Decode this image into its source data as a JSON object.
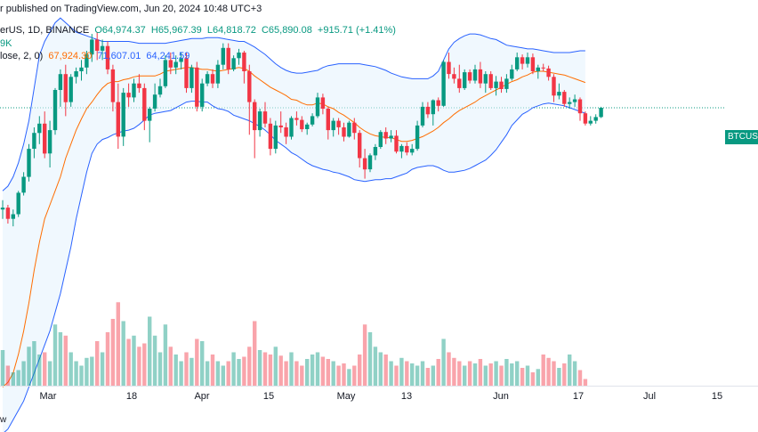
{
  "header": {
    "line1": "r published on TradingView.com, Jun 20, 2024 10:48 UTC+3",
    "symbol_prefix": "erUS, 1D, BINANCE",
    "open": "O64,974.37",
    "high": "H65,967.39",
    "low": "L64,818.72",
    "close": "C65,890.08",
    "change": "+915.71 (+1.41%)",
    "volume": "9K",
    "indicator_prefix": "lose, 2, 0)",
    "ind_basis": "67,924.30",
    "ind_upper": "71,607.01",
    "ind_lower": "64,241.59"
  },
  "price_tag": "BTCUSDT",
  "footer": "w",
  "colors": {
    "up": "#089981",
    "down": "#f23645",
    "band": "#2962ff",
    "basis": "#ff6d00",
    "band_fill": "#e3f2fd"
  },
  "chart_data": {
    "type": "candlestick",
    "x_ticks": [
      "Mar",
      "18",
      "Apr",
      "15",
      "May",
      "13",
      "Jun",
      "17",
      "Jul",
      "15"
    ],
    "y_range": [
      35000,
      76000
    ],
    "last_price": 65890.08,
    "candles": [
      [
        55000,
        56000,
        54000,
        55200
      ],
      [
        55200,
        55500,
        53500,
        54000
      ],
      [
        54000,
        55000,
        53200,
        54500
      ],
      [
        54500,
        57000,
        54200,
        56800
      ],
      [
        56800,
        59000,
        56500,
        58500
      ],
      [
        58500,
        62000,
        58000,
        61500
      ],
      [
        61500,
        63800,
        60500,
        63200
      ],
      [
        63200,
        65000,
        62000,
        64200
      ],
      [
        64200,
        65500,
        60500,
        61000
      ],
      [
        61000,
        64500,
        59500,
        63500
      ],
      [
        63500,
        68000,
        63000,
        67800
      ],
      [
        67800,
        70000,
        66000,
        69500
      ],
      [
        69500,
        70500,
        65000,
        66500
      ],
      [
        66500,
        69500,
        66000,
        69200
      ],
      [
        69200,
        70200,
        68500,
        69800
      ],
      [
        69800,
        71000,
        68800,
        70200
      ],
      [
        70200,
        72000,
        69500,
        71600
      ],
      [
        71600,
        73800,
        70800,
        73200
      ],
      [
        73200,
        74000,
        71000,
        72000
      ],
      [
        72000,
        73200,
        71000,
        72500
      ],
      [
        72500,
        73000,
        69500,
        70000
      ],
      [
        70000,
        70500,
        65500,
        66500
      ],
      [
        66500,
        68500,
        61500,
        62800
      ],
      [
        62800,
        68000,
        61800,
        67500
      ],
      [
        67500,
        68500,
        66000,
        67000
      ],
      [
        67000,
        69000,
        66500,
        68500
      ],
      [
        68500,
        69500,
        67500,
        68000
      ],
      [
        68000,
        68500,
        63500,
        64500
      ],
      [
        64500,
        66000,
        62200,
        65800
      ],
      [
        65800,
        68500,
        65500,
        67300
      ],
      [
        67300,
        69000,
        67000,
        68200
      ],
      [
        68200,
        71500,
        68000,
        71000
      ],
      [
        71000,
        71800,
        69500,
        70200
      ],
      [
        70200,
        71500,
        69500,
        70800
      ],
      [
        70800,
        71800,
        70000,
        71200
      ],
      [
        71200,
        71800,
        67500,
        68000
      ],
      [
        68000,
        70500,
        67500,
        70200
      ],
      [
        70200,
        70800,
        65500,
        66000
      ],
      [
        66000,
        69000,
        65500,
        68500
      ],
      [
        68500,
        69800,
        68200,
        69500
      ],
      [
        69500,
        70000,
        68000,
        68500
      ],
      [
        68500,
        71000,
        68000,
        70500
      ],
      [
        70500,
        72800,
        70000,
        72300
      ],
      [
        72300,
        72800,
        69500,
        70000
      ],
      [
        70000,
        71500,
        69800,
        71200
      ],
      [
        71200,
        72200,
        70500,
        71800
      ],
      [
        71800,
        72000,
        68500,
        69800
      ],
      [
        69800,
        70500,
        63000,
        66500
      ],
      [
        66500,
        66800,
        60500,
        63500
      ],
      [
        63500,
        65800,
        62800,
        65500
      ],
      [
        65500,
        66500,
        63800,
        64200
      ],
      [
        64200,
        64800,
        60800,
        61500
      ],
      [
        61500,
        64500,
        61000,
        64000
      ],
      [
        64000,
        65500,
        63200,
        63800
      ],
      [
        63800,
        64300,
        62000,
        62800
      ],
      [
        62800,
        65000,
        62500,
        64800
      ],
      [
        64800,
        65500,
        64000,
        64600
      ],
      [
        64600,
        65000,
        63300,
        63600
      ],
      [
        63600,
        64300,
        63000,
        64100
      ],
      [
        64100,
        65300,
        63900,
        65000
      ],
      [
        65000,
        67500,
        64800,
        67000
      ],
      [
        67000,
        67400,
        65200,
        65800
      ],
      [
        65800,
        66000,
        62500,
        63500
      ],
      [
        63500,
        64800,
        62800,
        64500
      ],
      [
        64500,
        64800,
        63000,
        63800
      ],
      [
        63800,
        64300,
        62300,
        62800
      ],
      [
        62800,
        64500,
        62700,
        64300
      ],
      [
        64300,
        64800,
        62500,
        63200
      ],
      [
        63200,
        63500,
        59500,
        60500
      ],
      [
        60500,
        61500,
        58300,
        59300
      ],
      [
        59300,
        61000,
        59000,
        60800
      ],
      [
        60800,
        62000,
        60300,
        61700
      ],
      [
        61700,
        63500,
        61500,
        63300
      ],
      [
        63300,
        63800,
        62000,
        62600
      ],
      [
        62600,
        63500,
        62200,
        62900
      ],
      [
        62900,
        63500,
        61000,
        61200
      ],
      [
        61200,
        62000,
        60500,
        61800
      ],
      [
        61800,
        62200,
        60800,
        61100
      ],
      [
        61100,
        62000,
        60800,
        61500
      ],
      [
        61500,
        64500,
        61300,
        64000
      ],
      [
        64000,
        66500,
        63800,
        66000
      ],
      [
        66000,
        66500,
        64800,
        65200
      ],
      [
        65200,
        66800,
        64000,
        66700
      ],
      [
        66700,
        67000,
        65500,
        66100
      ],
      [
        66100,
        71000,
        66000,
        70800
      ],
      [
        70800,
        71800,
        69000,
        69500
      ],
      [
        69500,
        70200,
        68500,
        69000
      ],
      [
        69000,
        70500,
        67500,
        68000
      ],
      [
        68000,
        70000,
        67800,
        69700
      ],
      [
        69700,
        70000,
        68500,
        68800
      ],
      [
        68800,
        70500,
        68500,
        70000
      ],
      [
        70000,
        70800,
        68000,
        68500
      ],
      [
        68500,
        69800,
        67500,
        69500
      ],
      [
        69500,
        69800,
        67800,
        68000
      ],
      [
        68000,
        69300,
        67200,
        68700
      ],
      [
        68700,
        69200,
        67500,
        67900
      ],
      [
        67900,
        69500,
        67500,
        69000
      ],
      [
        69000,
        70500,
        68800,
        70000
      ],
      [
        70000,
        71800,
        69800,
        71300
      ],
      [
        71300,
        71600,
        70000,
        70600
      ],
      [
        70600,
        71800,
        70200,
        71300
      ],
      [
        71300,
        71700,
        69500,
        69800
      ],
      [
        69800,
        70500,
        69000,
        70200
      ],
      [
        70200,
        70600,
        69800,
        70100
      ],
      [
        70100,
        70400,
        68800,
        69200
      ],
      [
        69200,
        69500,
        66500,
        67200
      ],
      [
        67200,
        68500,
        66800,
        67600
      ],
      [
        67600,
        67800,
        66000,
        66300
      ],
      [
        66300,
        67000,
        65800,
        66500
      ],
      [
        66500,
        67300,
        66000,
        66800
      ],
      [
        66800,
        67000,
        64500,
        65300
      ],
      [
        65300,
        65500,
        64000,
        64200
      ],
      [
        64200,
        65000,
        64000,
        64500
      ],
      [
        64500,
        65200,
        64200,
        64900
      ],
      [
        64900,
        66000,
        64800,
        65890
      ]
    ],
    "volume": [
      32,
      18,
      12,
      14,
      22,
      35,
      40,
      28,
      30,
      22,
      55,
      48,
      45,
      30,
      22,
      18,
      25,
      26,
      40,
      30,
      48,
      60,
      75,
      58,
      42,
      45,
      35,
      38,
      62,
      45,
      30,
      55,
      35,
      28,
      22,
      30,
      25,
      42,
      40,
      22,
      28,
      22,
      18,
      22,
      30,
      24,
      26,
      35,
      58,
      32,
      30,
      28,
      35,
      27,
      22,
      30,
      22,
      18,
      24,
      28,
      30,
      26,
      24,
      22,
      18,
      20,
      15,
      18,
      28,
      55,
      48,
      35,
      30,
      28,
      22,
      18,
      25,
      22,
      20,
      18,
      22,
      16,
      18,
      24,
      42,
      30,
      25,
      22,
      18,
      22,
      20,
      24,
      18,
      20,
      22,
      18,
      24,
      20,
      22,
      16,
      18,
      12,
      15,
      28,
      25,
      22,
      16,
      20,
      28,
      22,
      14,
      6
    ],
    "bands": {
      "basis": [
        36000,
        36500,
        37500,
        39500,
        42000,
        45000,
        48500,
        51500,
        54000,
        55500,
        57000,
        58500,
        60500,
        62000,
        63500,
        64700,
        65800,
        66500,
        67300,
        68000,
        68500,
        68700,
        68700,
        68900,
        69000,
        69200,
        69300,
        69300,
        69300,
        69300,
        69500,
        69800,
        69900,
        70000,
        70100,
        70200,
        70200,
        70100,
        70000,
        70000,
        69900,
        69800,
        69900,
        70000,
        70100,
        70200,
        70100,
        69800,
        69300,
        68900,
        68500,
        68100,
        67800,
        67500,
        67200,
        66800,
        66700,
        66400,
        66200,
        66200,
        66400,
        66300,
        66000,
        65800,
        65400,
        65100,
        64700,
        64300,
        63800,
        63400,
        63100,
        62900,
        62800,
        62700,
        62700,
        62500,
        62300,
        62300,
        62400,
        62600,
        62800,
        63100,
        63400,
        63800,
        64300,
        64700,
        65200,
        65600,
        65900,
        66200,
        66500,
        66900,
        67200,
        67500,
        67800,
        68100,
        68400,
        68700,
        68900,
        69200,
        69400,
        69700,
        69800,
        69800,
        69700,
        69600,
        69500,
        69400,
        69200,
        69000,
        68800,
        68600
      ],
      "upper": [
        57000,
        57500,
        58500,
        60000,
        62000,
        64500,
        68000,
        71500,
        73000,
        74000,
        75000,
        75500,
        75000,
        74500,
        74000,
        73800,
        73600,
        73400,
        73200,
        73000,
        73000,
        73000,
        73000,
        73000,
        73000,
        72900,
        72800,
        72800,
        72800,
        72800,
        72800,
        72800,
        72900,
        73000,
        73100,
        73200,
        73300,
        73300,
        73300,
        73400,
        73400,
        73400,
        73300,
        73200,
        73100,
        73000,
        73000,
        72700,
        72400,
        72000,
        71600,
        71100,
        70600,
        70200,
        69900,
        69700,
        69600,
        69600,
        69700,
        69800,
        69900,
        70200,
        70400,
        70500,
        70600,
        70600,
        70600,
        70600,
        70600,
        70500,
        70400,
        70300,
        70100,
        69900,
        69600,
        69400,
        69200,
        69100,
        69000,
        69000,
        69000,
        69000,
        69300,
        69800,
        71000,
        72200,
        72900,
        73300,
        73600,
        73800,
        73800,
        73700,
        73500,
        73300,
        73200,
        72900,
        72600,
        72500,
        72400,
        72300,
        72200,
        72200,
        72100,
        72000,
        71900,
        71800,
        71800,
        71800,
        71800,
        71900,
        72000,
        72000
      ],
      "lower": [
        31000,
        31500,
        32500,
        33500,
        34500,
        36000,
        37500,
        39000,
        40500,
        42000,
        44000,
        46000,
        48500,
        51000,
        54000,
        56500,
        59000,
        61000,
        62000,
        62500,
        62700,
        63000,
        63200,
        63400,
        63500,
        63700,
        64100,
        64600,
        65100,
        65300,
        65400,
        65500,
        65600,
        65900,
        66200,
        66500,
        66600,
        66600,
        66500,
        66500,
        66100,
        65800,
        65700,
        65500,
        65100,
        64900,
        64700,
        64500,
        64200,
        63900,
        63500,
        63000,
        62400,
        62000,
        61600,
        61100,
        60800,
        60400,
        60000,
        59700,
        59500,
        59300,
        59200,
        59000,
        58900,
        58700,
        58500,
        58200,
        58100,
        58000,
        58100,
        58200,
        58200,
        58300,
        58300,
        58500,
        58700,
        58900,
        59300,
        59500,
        59600,
        59700,
        59700,
        59500,
        59200,
        59000,
        59000,
        59100,
        59200,
        59400,
        59700,
        60000,
        60300,
        60800,
        61400,
        62200,
        63000,
        64000,
        64600,
        65200,
        65500,
        65900,
        66100,
        66300,
        66400,
        66300,
        66200,
        66100,
        65900,
        65700,
        65500,
        65300
      ]
    }
  }
}
